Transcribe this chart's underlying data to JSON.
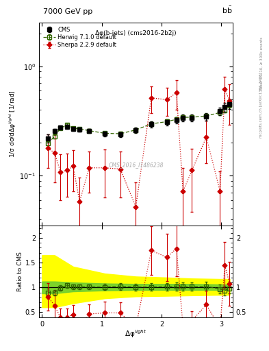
{
  "title_top": "7000 GeV pp",
  "title_right": "b$\\bar{\\text{b}}$",
  "subtitle": "Δφ(b-jets) (cms2016-2b2j)",
  "watermark": "CMS_2016_I1486238",
  "right_label1": "Rivet 3.1.10, ≥ 300k events",
  "right_label2": "mcplots.cern.ch [arXiv:1306.3436]",
  "ylabel_main": "1/σ dσ/dΔφ$^{light}$ [1/rad]",
  "ylabel_ratio": "Ratio to CMS",
  "xlabel": "Δφ$^{light}$",
  "ylim_main": [
    0.035,
    2.5
  ],
  "ylim_ratio": [
    0.39,
    2.25
  ],
  "cms_x": [
    0.1,
    0.21,
    0.31,
    0.42,
    0.52,
    0.63,
    0.79,
    1.05,
    1.31,
    1.57,
    1.83,
    2.09,
    2.25,
    2.36,
    2.51,
    2.75,
    2.98,
    3.06,
    3.14
  ],
  "cms_y": [
    0.22,
    0.255,
    0.275,
    0.28,
    0.268,
    0.265,
    0.255,
    0.242,
    0.237,
    0.26,
    0.295,
    0.308,
    0.322,
    0.338,
    0.338,
    0.345,
    0.39,
    0.425,
    0.45
  ],
  "cms_yerr": [
    0.018,
    0.014,
    0.012,
    0.011,
    0.011,
    0.011,
    0.011,
    0.012,
    0.013,
    0.015,
    0.018,
    0.02,
    0.022,
    0.024,
    0.024,
    0.026,
    0.032,
    0.038,
    0.042
  ],
  "herwig_x": [
    0.1,
    0.21,
    0.31,
    0.42,
    0.52,
    0.63,
    0.79,
    1.05,
    1.31,
    1.57,
    1.83,
    2.09,
    2.25,
    2.36,
    2.51,
    2.75,
    2.98,
    3.06,
    3.14
  ],
  "herwig_y": [
    0.198,
    0.228,
    0.272,
    0.292,
    0.272,
    0.268,
    0.258,
    0.244,
    0.242,
    0.262,
    0.298,
    0.312,
    0.328,
    0.342,
    0.342,
    0.352,
    0.378,
    0.398,
    0.442
  ],
  "herwig_yerr": [
    0.008,
    0.008,
    0.008,
    0.008,
    0.008,
    0.008,
    0.008,
    0.009,
    0.009,
    0.01,
    0.011,
    0.012,
    0.013,
    0.014,
    0.014,
    0.016,
    0.019,
    0.021,
    0.025
  ],
  "sherpa_x": [
    0.1,
    0.21,
    0.31,
    0.42,
    0.52,
    0.63,
    0.79,
    1.05,
    1.31,
    1.57,
    1.83,
    2.09,
    2.25,
    2.36,
    2.51,
    2.75,
    2.98,
    3.06,
    3.14
  ],
  "sherpa_y": [
    0.178,
    0.162,
    0.108,
    0.112,
    0.122,
    0.058,
    0.118,
    0.118,
    0.115,
    0.052,
    0.515,
    0.495,
    0.575,
    0.072,
    0.112,
    0.225,
    0.072,
    0.615,
    0.485
  ],
  "sherpa_yerr_lo": [
    0.06,
    0.075,
    0.048,
    0.048,
    0.05,
    0.038,
    0.048,
    0.055,
    0.052,
    0.035,
    0.14,
    0.145,
    0.175,
    0.045,
    0.065,
    0.095,
    0.038,
    0.19,
    0.195
  ],
  "sherpa_yerr_hi": [
    0.06,
    0.075,
    0.048,
    0.048,
    0.05,
    0.038,
    0.048,
    0.055,
    0.052,
    0.035,
    0.14,
    0.145,
    0.175,
    0.045,
    0.065,
    0.095,
    0.038,
    0.19,
    0.195
  ],
  "cms_color": "#000000",
  "herwig_color": "#336600",
  "sherpa_color": "#cc0000",
  "yellow_band_x": [
    0.0,
    0.21,
    0.52,
    1.05,
    1.57,
    2.09,
    2.51,
    2.98,
    3.14
  ],
  "yellow_band_lo": [
    0.6,
    0.6,
    0.68,
    0.78,
    0.82,
    0.83,
    0.84,
    0.85,
    0.85
  ],
  "yellow_band_hi": [
    1.65,
    1.65,
    1.42,
    1.28,
    1.22,
    1.2,
    1.18,
    1.17,
    1.17
  ],
  "green_band_x": [
    0.0,
    0.21,
    0.52,
    1.05,
    1.57,
    2.09,
    2.51,
    2.98,
    3.14
  ],
  "green_band_lo": [
    0.88,
    0.88,
    0.92,
    0.94,
    0.95,
    0.95,
    0.95,
    0.95,
    0.95
  ],
  "green_band_hi": [
    1.12,
    1.12,
    1.1,
    1.08,
    1.07,
    1.07,
    1.07,
    1.06,
    1.06
  ]
}
